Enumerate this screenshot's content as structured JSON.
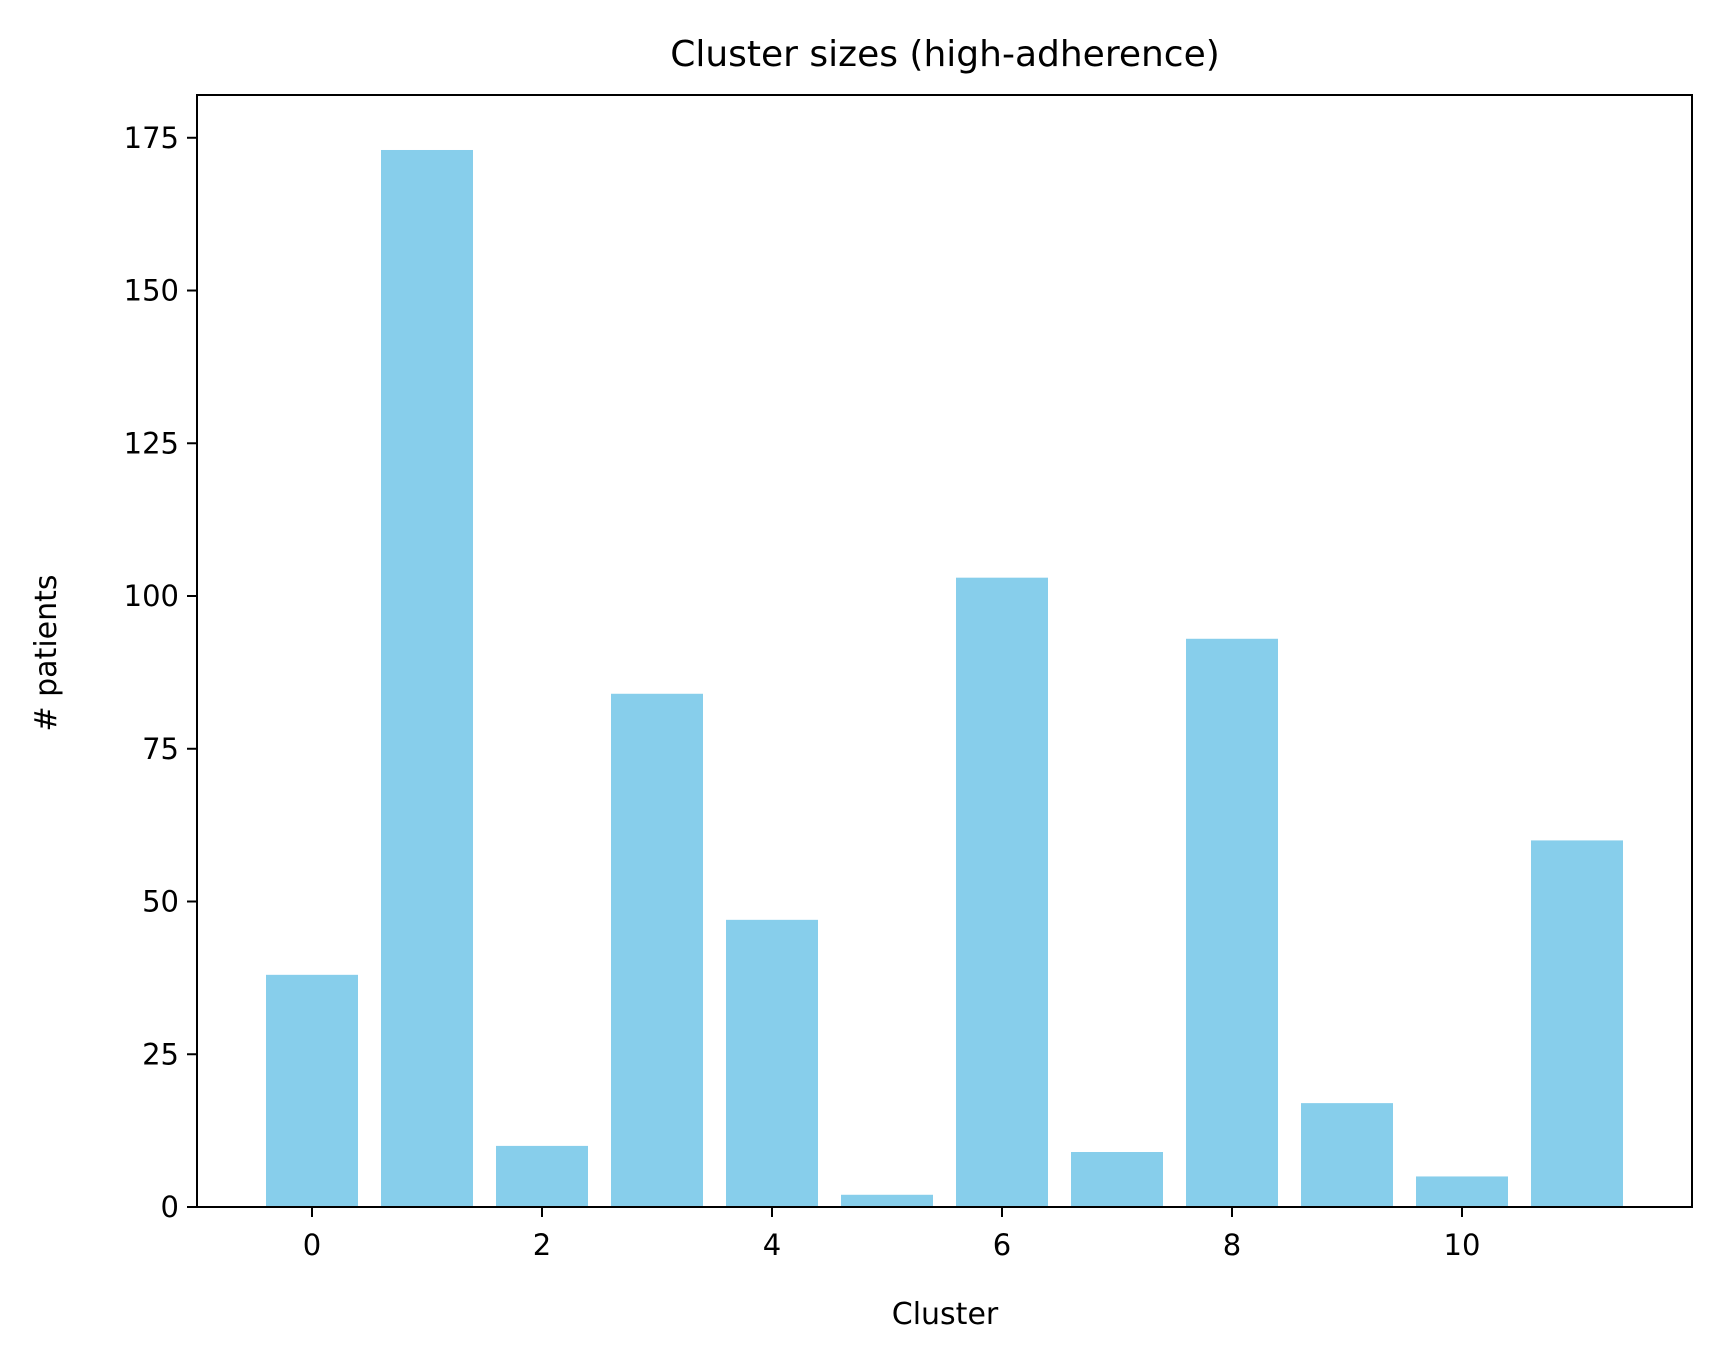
{
  "chart_data": {
    "type": "bar",
    "title": "Cluster sizes (high-adherence)",
    "xlabel": "Cluster",
    "ylabel": "# patients",
    "categories": [
      0,
      1,
      2,
      3,
      4,
      5,
      6,
      7,
      8,
      9,
      10,
      11
    ],
    "values": [
      38,
      173,
      10,
      84,
      47,
      2,
      103,
      9,
      93,
      17,
      5,
      60
    ],
    "xlim": [
      -1.0,
      12.0
    ],
    "ylim": [
      0,
      182
    ],
    "xticks": [
      0,
      2,
      4,
      6,
      8,
      10
    ],
    "yticks": [
      0,
      25,
      50,
      75,
      100,
      125,
      150,
      175
    ],
    "bar_color": "#87ceeb",
    "grid": false,
    "legend": "none"
  }
}
